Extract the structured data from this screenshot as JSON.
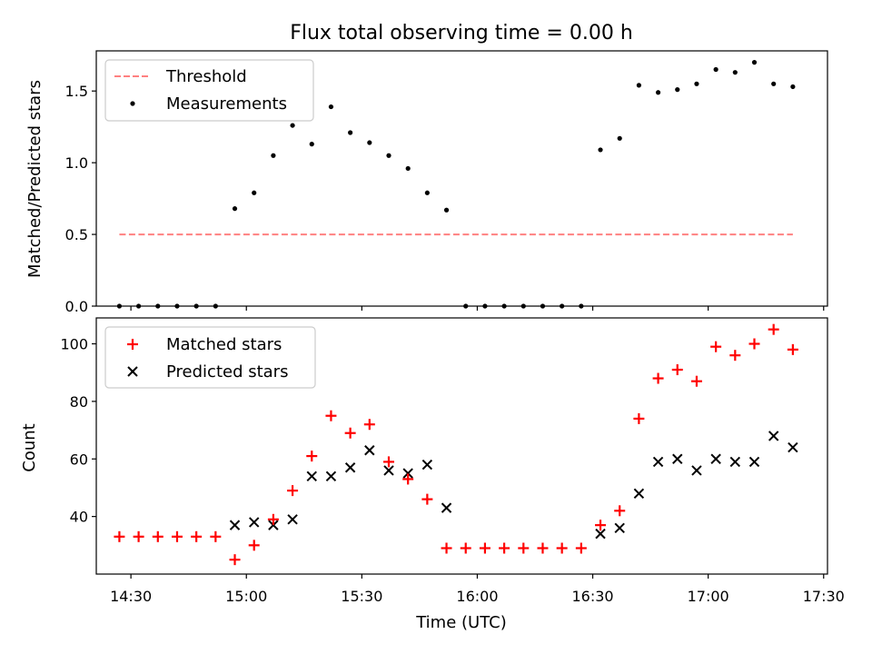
{
  "chart_data": [
    {
      "type": "scatter",
      "title": "Flux total observing time = 0.00 h",
      "xlabel": "",
      "ylabel": "Matched/Predicted stars",
      "xlim": [
        "14:21",
        "17:31"
      ],
      "ylim": [
        0,
        1.78
      ],
      "yticks": [
        0.0,
        0.5,
        1.0,
        1.5
      ],
      "ytick_labels": [
        "0.0",
        "0.5",
        "1.0",
        "1.5"
      ],
      "xticks": [
        "14:30",
        "15:00",
        "15:30",
        "16:00",
        "16:30",
        "17:00",
        "17:30"
      ],
      "xtick_labels_shown": false,
      "legend": {
        "position": "upper-left",
        "entries": [
          {
            "label": "Threshold",
            "style": "dashed-line",
            "color": "#ff8080"
          },
          {
            "label": "Measurements",
            "style": "dot",
            "color": "#000000"
          }
        ]
      },
      "series": [
        {
          "name": "Threshold",
          "kind": "line",
          "color": "#ff8080",
          "x": [
            "14:27",
            "17:22"
          ],
          "y": [
            0.5,
            0.5
          ]
        },
        {
          "name": "Measurements",
          "kind": "points",
          "color": "#000000",
          "x": [
            "14:27",
            "14:32",
            "14:37",
            "14:42",
            "14:47",
            "14:52",
            "14:57",
            "15:02",
            "15:07",
            "15:12",
            "15:17",
            "15:22",
            "15:27",
            "15:32",
            "15:37",
            "15:42",
            "15:47",
            "15:52",
            "15:57",
            "16:02",
            "16:07",
            "16:12",
            "16:17",
            "16:22",
            "16:27",
            "16:32",
            "16:37",
            "16:42",
            "16:47",
            "16:52",
            "16:57",
            "17:02",
            "17:07",
            "17:12",
            "17:17",
            "17:22"
          ],
          "y": [
            0,
            0,
            0,
            0,
            0,
            0,
            0.68,
            0.79,
            1.05,
            1.26,
            1.13,
            1.39,
            1.21,
            1.14,
            1.05,
            0.96,
            0.79,
            0.67,
            0,
            0,
            0,
            0,
            0,
            0,
            0,
            1.09,
            1.17,
            1.54,
            1.49,
            1.51,
            1.55,
            1.65,
            1.63,
            1.7,
            1.55,
            1.53
          ]
        }
      ]
    },
    {
      "type": "scatter",
      "title": "",
      "xlabel": "Time (UTC)",
      "ylabel": "Count",
      "xlim": [
        "14:21",
        "17:31"
      ],
      "ylim": [
        20,
        109
      ],
      "yticks": [
        40,
        60,
        80,
        100
      ],
      "ytick_labels": [
        "40",
        "60",
        "80",
        "100"
      ],
      "xticks": [
        "14:30",
        "15:00",
        "15:30",
        "16:00",
        "16:30",
        "17:00",
        "17:30"
      ],
      "xtick_labels": [
        "14:30",
        "15:00",
        "15:30",
        "16:00",
        "16:30",
        "17:00",
        "17:30"
      ],
      "legend": {
        "position": "upper-left",
        "entries": [
          {
            "label": "Matched stars",
            "marker": "plus",
            "color": "#ff0000"
          },
          {
            "label": "Predicted stars",
            "marker": "x",
            "color": "#000000"
          }
        ]
      },
      "series": [
        {
          "name": "Matched stars",
          "marker": "plus",
          "color": "#ff0000",
          "x": [
            "14:27",
            "14:32",
            "14:37",
            "14:42",
            "14:47",
            "14:52",
            "14:57",
            "15:02",
            "15:07",
            "15:12",
            "15:17",
            "15:22",
            "15:27",
            "15:32",
            "15:37",
            "15:42",
            "15:47",
            "15:52",
            "15:57",
            "16:02",
            "16:07",
            "16:12",
            "16:17",
            "16:22",
            "16:27",
            "16:32",
            "16:37",
            "16:42",
            "16:47",
            "16:52",
            "16:57",
            "17:02",
            "17:07",
            "17:12",
            "17:17",
            "17:22"
          ],
          "y": [
            33,
            33,
            33,
            33,
            33,
            33,
            25,
            30,
            39,
            49,
            61,
            75,
            69,
            72,
            59,
            53,
            46,
            29,
            29,
            29,
            29,
            29,
            29,
            29,
            29,
            37,
            42,
            74,
            88,
            91,
            87,
            99,
            96,
            100,
            105,
            98
          ]
        },
        {
          "name": "Predicted stars",
          "marker": "x",
          "color": "#000000",
          "x": [
            "14:57",
            "15:02",
            "15:07",
            "15:12",
            "15:17",
            "15:22",
            "15:27",
            "15:32",
            "15:37",
            "15:42",
            "15:47",
            "15:52",
            "16:32",
            "16:37",
            "16:42",
            "16:47",
            "16:52",
            "16:57",
            "17:02",
            "17:07",
            "17:12",
            "17:17",
            "17:22"
          ],
          "y": [
            37,
            38,
            37,
            39,
            54,
            54,
            57,
            63,
            56,
            55,
            58,
            43,
            34,
            36,
            48,
            59,
            60,
            56,
            60,
            59,
            59,
            68,
            64
          ]
        }
      ]
    }
  ]
}
